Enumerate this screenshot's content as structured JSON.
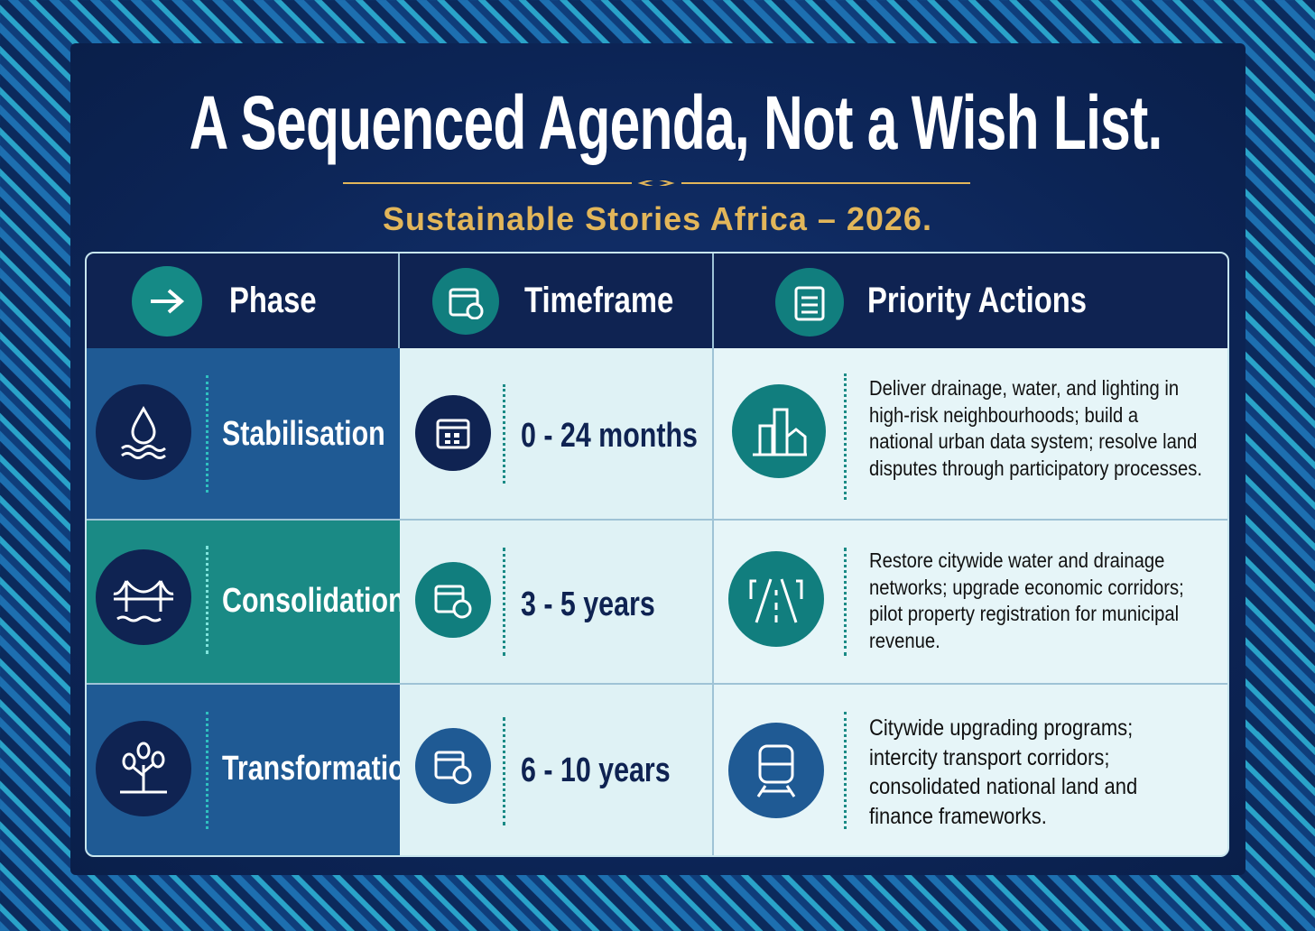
{
  "header": {
    "title": "A Sequenced Agenda, Not a Wish List.",
    "subtitle": "Sustainable Stories Africa – 2026."
  },
  "table": {
    "columns": [
      "Phase",
      "Timeframe",
      "Priority Actions"
    ],
    "rows": [
      [
        "Stabilisation",
        "0 - 24 months",
        "Deliver drainage, water, and lighting in high-risk neighbourhoods; build a national urban data system; resolve land disputes through participatory processes."
      ],
      [
        "Consolidation",
        "3 - 5 years",
        "Restore citywide water and drainage networks; upgrade economic corridors; pilot property registration for municipal revenue."
      ],
      [
        "Transformation",
        "6 - 10 years",
        "Citywide upgrading programs; intercity transport corridors; consolidated national land and finance frameworks."
      ]
    ]
  }
}
